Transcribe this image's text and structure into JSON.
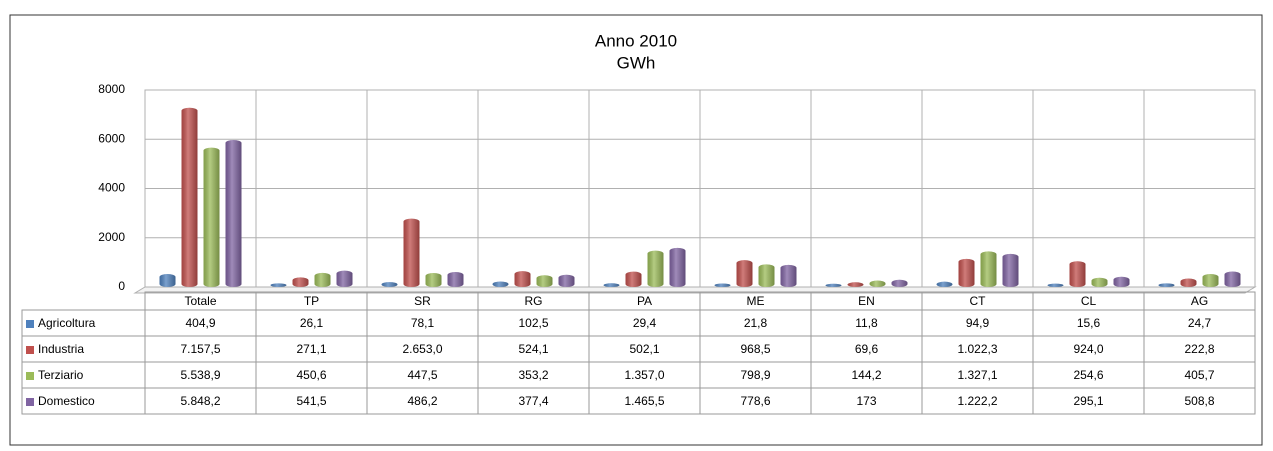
{
  "chart_data": {
    "type": "bar",
    "title": "Anno 2010",
    "subtitle": "GWh",
    "categories": [
      "Totale",
      "TP",
      "SR",
      "RG",
      "PA",
      "ME",
      "EN",
      "CT",
      "CL",
      "AG"
    ],
    "series": [
      {
        "name": "Agricoltura",
        "color": "#4f81bd",
        "values": [
          404.9,
          26.1,
          78.1,
          102.5,
          29.4,
          21.8,
          11.8,
          94.9,
          15.6,
          24.7
        ],
        "value_labels": [
          "404,9",
          "26,1",
          "78,1",
          "102,5",
          "29,4",
          "21,8",
          "11,8",
          "94,9",
          "15,6",
          "24,7"
        ]
      },
      {
        "name": "Industria",
        "color": "#c0504d",
        "values": [
          7157.5,
          271.1,
          2653.0,
          524.1,
          502.1,
          968.5,
          69.6,
          1022.3,
          924.0,
          222.8
        ],
        "value_labels": [
          "7.157,5",
          "271,1",
          "2.653,0",
          "524,1",
          "502,1",
          "968,5",
          "69,6",
          "1.022,3",
          "924,0",
          "222,8"
        ]
      },
      {
        "name": "Terziario",
        "color": "#9bbb59",
        "values": [
          5538.9,
          450.6,
          447.5,
          353.2,
          1357.0,
          798.9,
          144.2,
          1327.1,
          254.6,
          405.7
        ],
        "value_labels": [
          "5.538,9",
          "450,6",
          "447,5",
          "353,2",
          "1.357,0",
          "798,9",
          "144,2",
          "1.327,1",
          "254,6",
          "405,7"
        ]
      },
      {
        "name": "Domestico",
        "color": "#8064a2",
        "values": [
          5848.2,
          541.5,
          486.2,
          377.4,
          1465.5,
          778.6,
          173,
          1222.2,
          295.1,
          508.8
        ],
        "value_labels": [
          "5.848,2",
          "541,5",
          "486,2",
          "377,4",
          "1.465,5",
          "778,6",
          "173",
          "1.222,2",
          "295,1",
          "508,8"
        ]
      }
    ],
    "ylim": [
      0,
      8000
    ],
    "yticks": [
      0,
      2000,
      4000,
      6000,
      8000
    ],
    "grid": true
  }
}
